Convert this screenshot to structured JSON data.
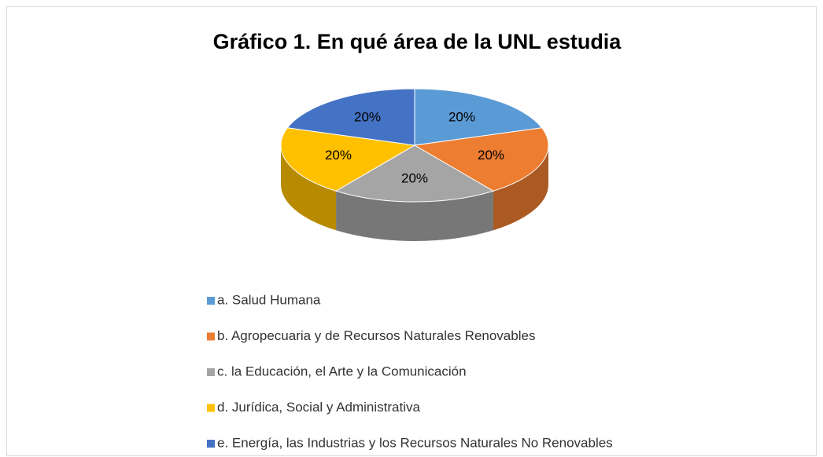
{
  "chart_data": {
    "type": "pie",
    "title": "Gráfico 1. En qué área de la UNL estudia",
    "categories": [
      "a. Salud Humana",
      "b. Agropecuaria y de Recursos Naturales Renovables",
      "c. la Educación, el Arte y la Comunicación",
      "d. Jurídica, Social y Administrativa",
      "e. Energía, las Industrias y los Recursos Naturales No Renovables"
    ],
    "values": [
      20,
      20,
      20,
      20,
      20
    ],
    "value_labels": [
      "20%",
      "20%",
      "20%",
      "20%",
      "20%"
    ],
    "colors": [
      "#5b9bd5",
      "#ed7d31",
      "#a5a5a5",
      "#ffc000",
      "#4472c4"
    ],
    "legend": "bottom-left"
  }
}
